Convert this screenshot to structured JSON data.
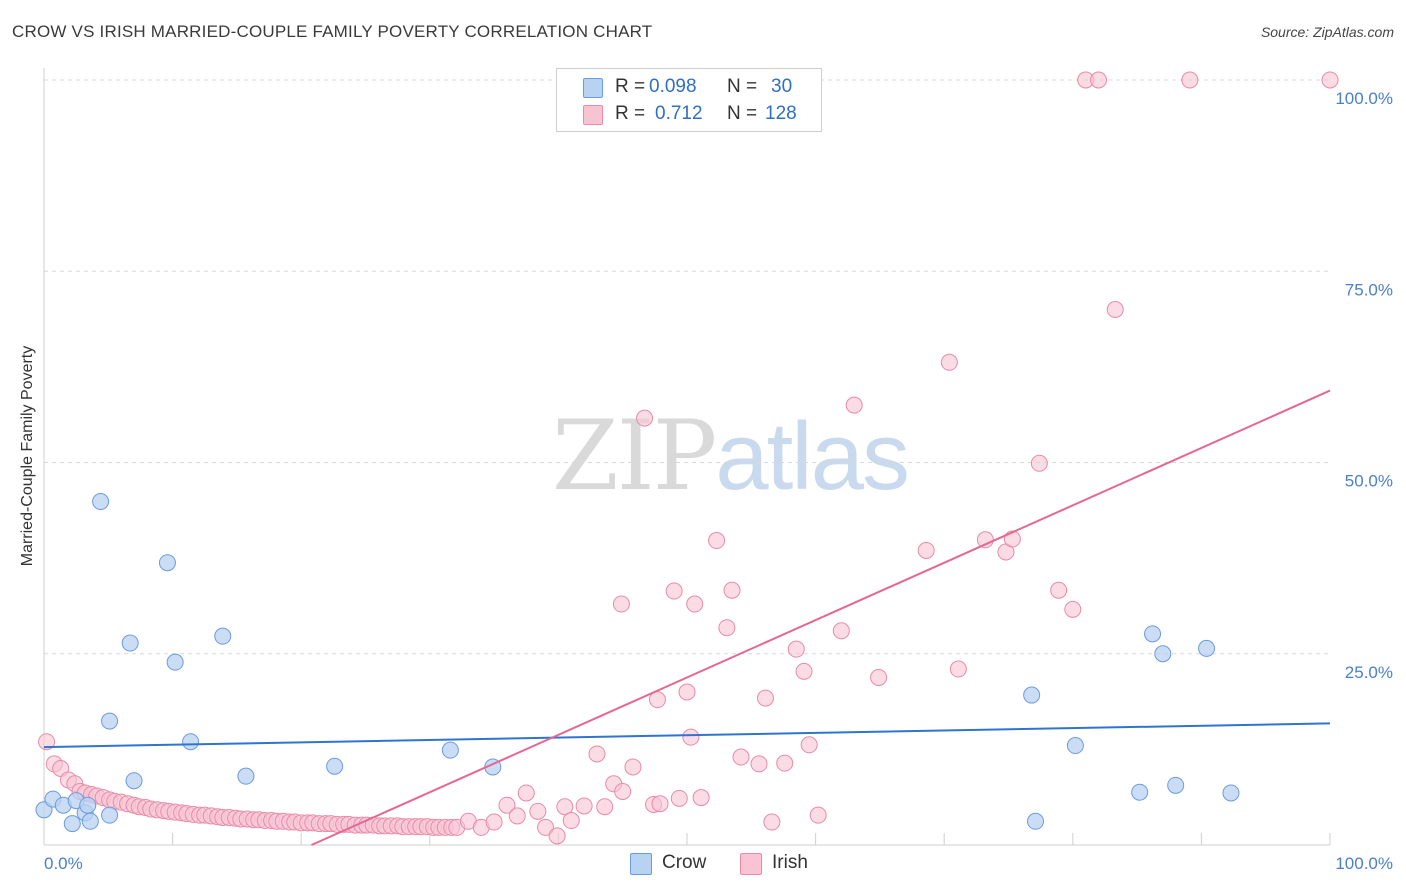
{
  "header": {
    "title": "CROW VS IRISH MARRIED-COUPLE FAMILY POVERTY CORRELATION CHART",
    "source": "Source: ZipAtlas.com"
  },
  "watermark": {
    "zip": "ZIP",
    "atlas": "atlas"
  },
  "legend_top": {
    "rows": [
      {
        "r_label": "R =",
        "r_value": "0.098",
        "n_label": "N =",
        "n_value": "30"
      },
      {
        "r_label": "R =",
        "r_value": "0.712",
        "n_label": "N =",
        "n_value": "128"
      }
    ]
  },
  "legend_bottom": {
    "crow": "Crow",
    "irish": "Irish"
  },
  "chart_data": {
    "type": "scatter",
    "title": "CROW VS IRISH MARRIED-COUPLE FAMILY POVERTY CORRELATION CHART",
    "xlabel": "",
    "ylabel": "Married-Couple Family Poverty",
    "xlim": [
      0,
      100
    ],
    "ylim": [
      0,
      100
    ],
    "x_tick_labels": [
      "0.0%",
      "100.0%"
    ],
    "y_tick_labels": [
      "100.0%",
      "75.0%",
      "50.0%",
      "25.0%"
    ],
    "y_ticks": [
      100,
      75,
      50,
      25
    ],
    "grid": true,
    "legend_position": "top-center",
    "colors": {
      "crow_fill": "#b8d2f2",
      "crow_stroke": "#6b9be0",
      "crow_line": "#2f74d0",
      "irish_fill": "#f8c4d3",
      "irish_stroke": "#ea8aa8",
      "irish_line": "#e4688f",
      "tick": "#4a7fc9",
      "grid": "#d8d8d8"
    },
    "series": [
      {
        "name": "Crow",
        "r": 0.098,
        "n": 30,
        "trend": [
          [
            0,
            12.8
          ],
          [
            100,
            15.9
          ]
        ],
        "points": [
          [
            0,
            4.6
          ],
          [
            0.7,
            6.0
          ],
          [
            1.5,
            5.2
          ],
          [
            2.2,
            2.8
          ],
          [
            2.5,
            5.8
          ],
          [
            3.2,
            4.2
          ],
          [
            3.6,
            3.1
          ],
          [
            3.4,
            5.2
          ],
          [
            4.4,
            44.9
          ],
          [
            5.1,
            16.2
          ],
          [
            5.1,
            3.9
          ],
          [
            6.7,
            26.4
          ],
          [
            7.0,
            8.4
          ],
          [
            9.6,
            36.9
          ],
          [
            10.2,
            23.9
          ],
          [
            11.4,
            13.5
          ],
          [
            13.9,
            27.3
          ],
          [
            15.7,
            9.0
          ],
          [
            22.6,
            10.3
          ],
          [
            31.6,
            12.4
          ],
          [
            34.9,
            10.2
          ],
          [
            76.8,
            19.6
          ],
          [
            77.1,
            3.1
          ],
          [
            80.2,
            13.0
          ],
          [
            85.2,
            6.9
          ],
          [
            86.2,
            27.6
          ],
          [
            87.0,
            25.0
          ],
          [
            88.0,
            7.8
          ],
          [
            90.4,
            25.7
          ],
          [
            92.3,
            6.8
          ]
        ]
      },
      {
        "name": "Irish",
        "r": 0.712,
        "n": 128,
        "trend": [
          [
            0,
            -15.6
          ],
          [
            100,
            59.4
          ]
        ],
        "points": [
          [
            0.2,
            13.5
          ],
          [
            0.8,
            10.6
          ],
          [
            1.3,
            10.0
          ],
          [
            1.9,
            8.5
          ],
          [
            2.4,
            8.0
          ],
          [
            2.8,
            7.0
          ],
          [
            3.2,
            6.8
          ],
          [
            3.7,
            6.6
          ],
          [
            4.1,
            6.4
          ],
          [
            4.6,
            6.2
          ],
          [
            5.1,
            5.9
          ],
          [
            5.5,
            5.7
          ],
          [
            6.0,
            5.6
          ],
          [
            6.5,
            5.4
          ],
          [
            7.0,
            5.2
          ],
          [
            7.4,
            5.0
          ],
          [
            7.9,
            4.9
          ],
          [
            8.3,
            4.7
          ],
          [
            8.8,
            4.6
          ],
          [
            9.3,
            4.5
          ],
          [
            9.7,
            4.4
          ],
          [
            10.2,
            4.3
          ],
          [
            10.7,
            4.2
          ],
          [
            11.1,
            4.1
          ],
          [
            11.6,
            4.0
          ],
          [
            12.1,
            3.9
          ],
          [
            12.5,
            3.9
          ],
          [
            13.0,
            3.8
          ],
          [
            13.5,
            3.7
          ],
          [
            13.9,
            3.6
          ],
          [
            14.4,
            3.6
          ],
          [
            14.9,
            3.5
          ],
          [
            15.3,
            3.4
          ],
          [
            15.8,
            3.4
          ],
          [
            16.3,
            3.3
          ],
          [
            16.7,
            3.3
          ],
          [
            17.2,
            3.2
          ],
          [
            17.7,
            3.2
          ],
          [
            18.1,
            3.1
          ],
          [
            18.6,
            3.1
          ],
          [
            19.1,
            3.0
          ],
          [
            19.5,
            3.0
          ],
          [
            20.0,
            2.9
          ],
          [
            20.5,
            2.9
          ],
          [
            20.9,
            2.9
          ],
          [
            21.4,
            2.8
          ],
          [
            21.9,
            2.8
          ],
          [
            22.3,
            2.8
          ],
          [
            22.8,
            2.7
          ],
          [
            23.3,
            2.7
          ],
          [
            23.7,
            2.7
          ],
          [
            24.2,
            2.6
          ],
          [
            24.7,
            2.6
          ],
          [
            25.1,
            2.6
          ],
          [
            25.6,
            2.6
          ],
          [
            26.1,
            2.5
          ],
          [
            26.5,
            2.5
          ],
          [
            27.0,
            2.5
          ],
          [
            27.5,
            2.5
          ],
          [
            27.9,
            2.4
          ],
          [
            28.4,
            2.4
          ],
          [
            28.9,
            2.4
          ],
          [
            29.3,
            2.4
          ],
          [
            29.8,
            2.4
          ],
          [
            30.3,
            2.3
          ],
          [
            30.7,
            2.3
          ],
          [
            31.2,
            2.3
          ],
          [
            31.7,
            2.3
          ],
          [
            32.1,
            2.3
          ],
          [
            33.0,
            3.1
          ],
          [
            34.0,
            2.3
          ],
          [
            35.0,
            3.0
          ],
          [
            36.0,
            5.2
          ],
          [
            36.8,
            3.8
          ],
          [
            37.5,
            6.8
          ],
          [
            38.4,
            4.4
          ],
          [
            39.0,
            2.3
          ],
          [
            39.9,
            1.2
          ],
          [
            40.5,
            5.0
          ],
          [
            41.0,
            3.2
          ],
          [
            42.0,
            5.1
          ],
          [
            43.0,
            11.9
          ],
          [
            43.6,
            5.0
          ],
          [
            44.3,
            8.0
          ],
          [
            44.9,
            31.5
          ],
          [
            45.0,
            7.0
          ],
          [
            45.8,
            10.2
          ],
          [
            46.7,
            55.8
          ],
          [
            47.4,
            5.3
          ],
          [
            47.7,
            19.0
          ],
          [
            47.9,
            5.4
          ],
          [
            49.0,
            33.2
          ],
          [
            49.4,
            6.1
          ],
          [
            50.0,
            20.0
          ],
          [
            50.3,
            14.1
          ],
          [
            50.6,
            31.5
          ],
          [
            51.1,
            6.2
          ],
          [
            52.3,
            39.8
          ],
          [
            53.1,
            28.4
          ],
          [
            53.5,
            33.3
          ],
          [
            54.2,
            11.5
          ],
          [
            55.6,
            10.6
          ],
          [
            56.1,
            19.2
          ],
          [
            56.6,
            3.0
          ],
          [
            57.6,
            10.7
          ],
          [
            58.5,
            25.6
          ],
          [
            59.1,
            22.7
          ],
          [
            59.5,
            13.1
          ],
          [
            60.2,
            3.9
          ],
          [
            62.0,
            28.0
          ],
          [
            63.0,
            57.5
          ],
          [
            64.9,
            21.9
          ],
          [
            68.6,
            38.5
          ],
          [
            70.4,
            63.1
          ],
          [
            71.1,
            23.0
          ],
          [
            73.2,
            39.9
          ],
          [
            74.8,
            38.3
          ],
          [
            75.3,
            40.0
          ],
          [
            77.4,
            49.9
          ],
          [
            78.9,
            33.3
          ],
          [
            80.0,
            30.8
          ],
          [
            81.0,
            100.0
          ],
          [
            82.0,
            100.0
          ],
          [
            83.3,
            70.0
          ],
          [
            89.1,
            100.0
          ],
          [
            100,
            100.0
          ]
        ]
      }
    ]
  }
}
